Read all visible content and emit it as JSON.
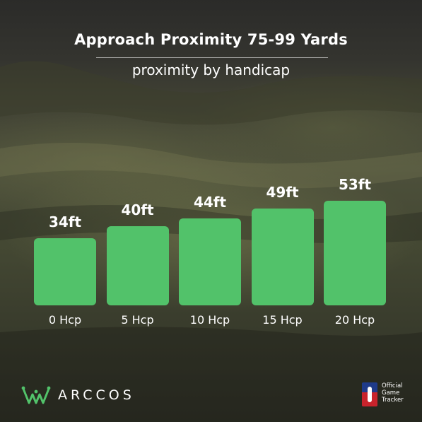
{
  "chart_data": {
    "type": "bar",
    "title": "Approach Proximity 75-99 Yards",
    "subtitle": "proximity by handicap",
    "categories": [
      "0 Hcp",
      "5 Hcp",
      "10 Hcp",
      "15 Hcp",
      "20 Hcp"
    ],
    "values": [
      34,
      40,
      44,
      49,
      53
    ],
    "data_labels": [
      "34ft",
      "40ft",
      "44ft",
      "49ft",
      "53ft"
    ],
    "unit": "ft",
    "bar_color": "#52c26a",
    "grid": false,
    "legend": "none"
  },
  "brand": {
    "logo_icon": "crown-icon",
    "name": "ARCCOS"
  },
  "badge": {
    "icon": "pga-tour-shield-icon",
    "line1": "Official",
    "line2": "Game",
    "line3": "Tracker"
  }
}
